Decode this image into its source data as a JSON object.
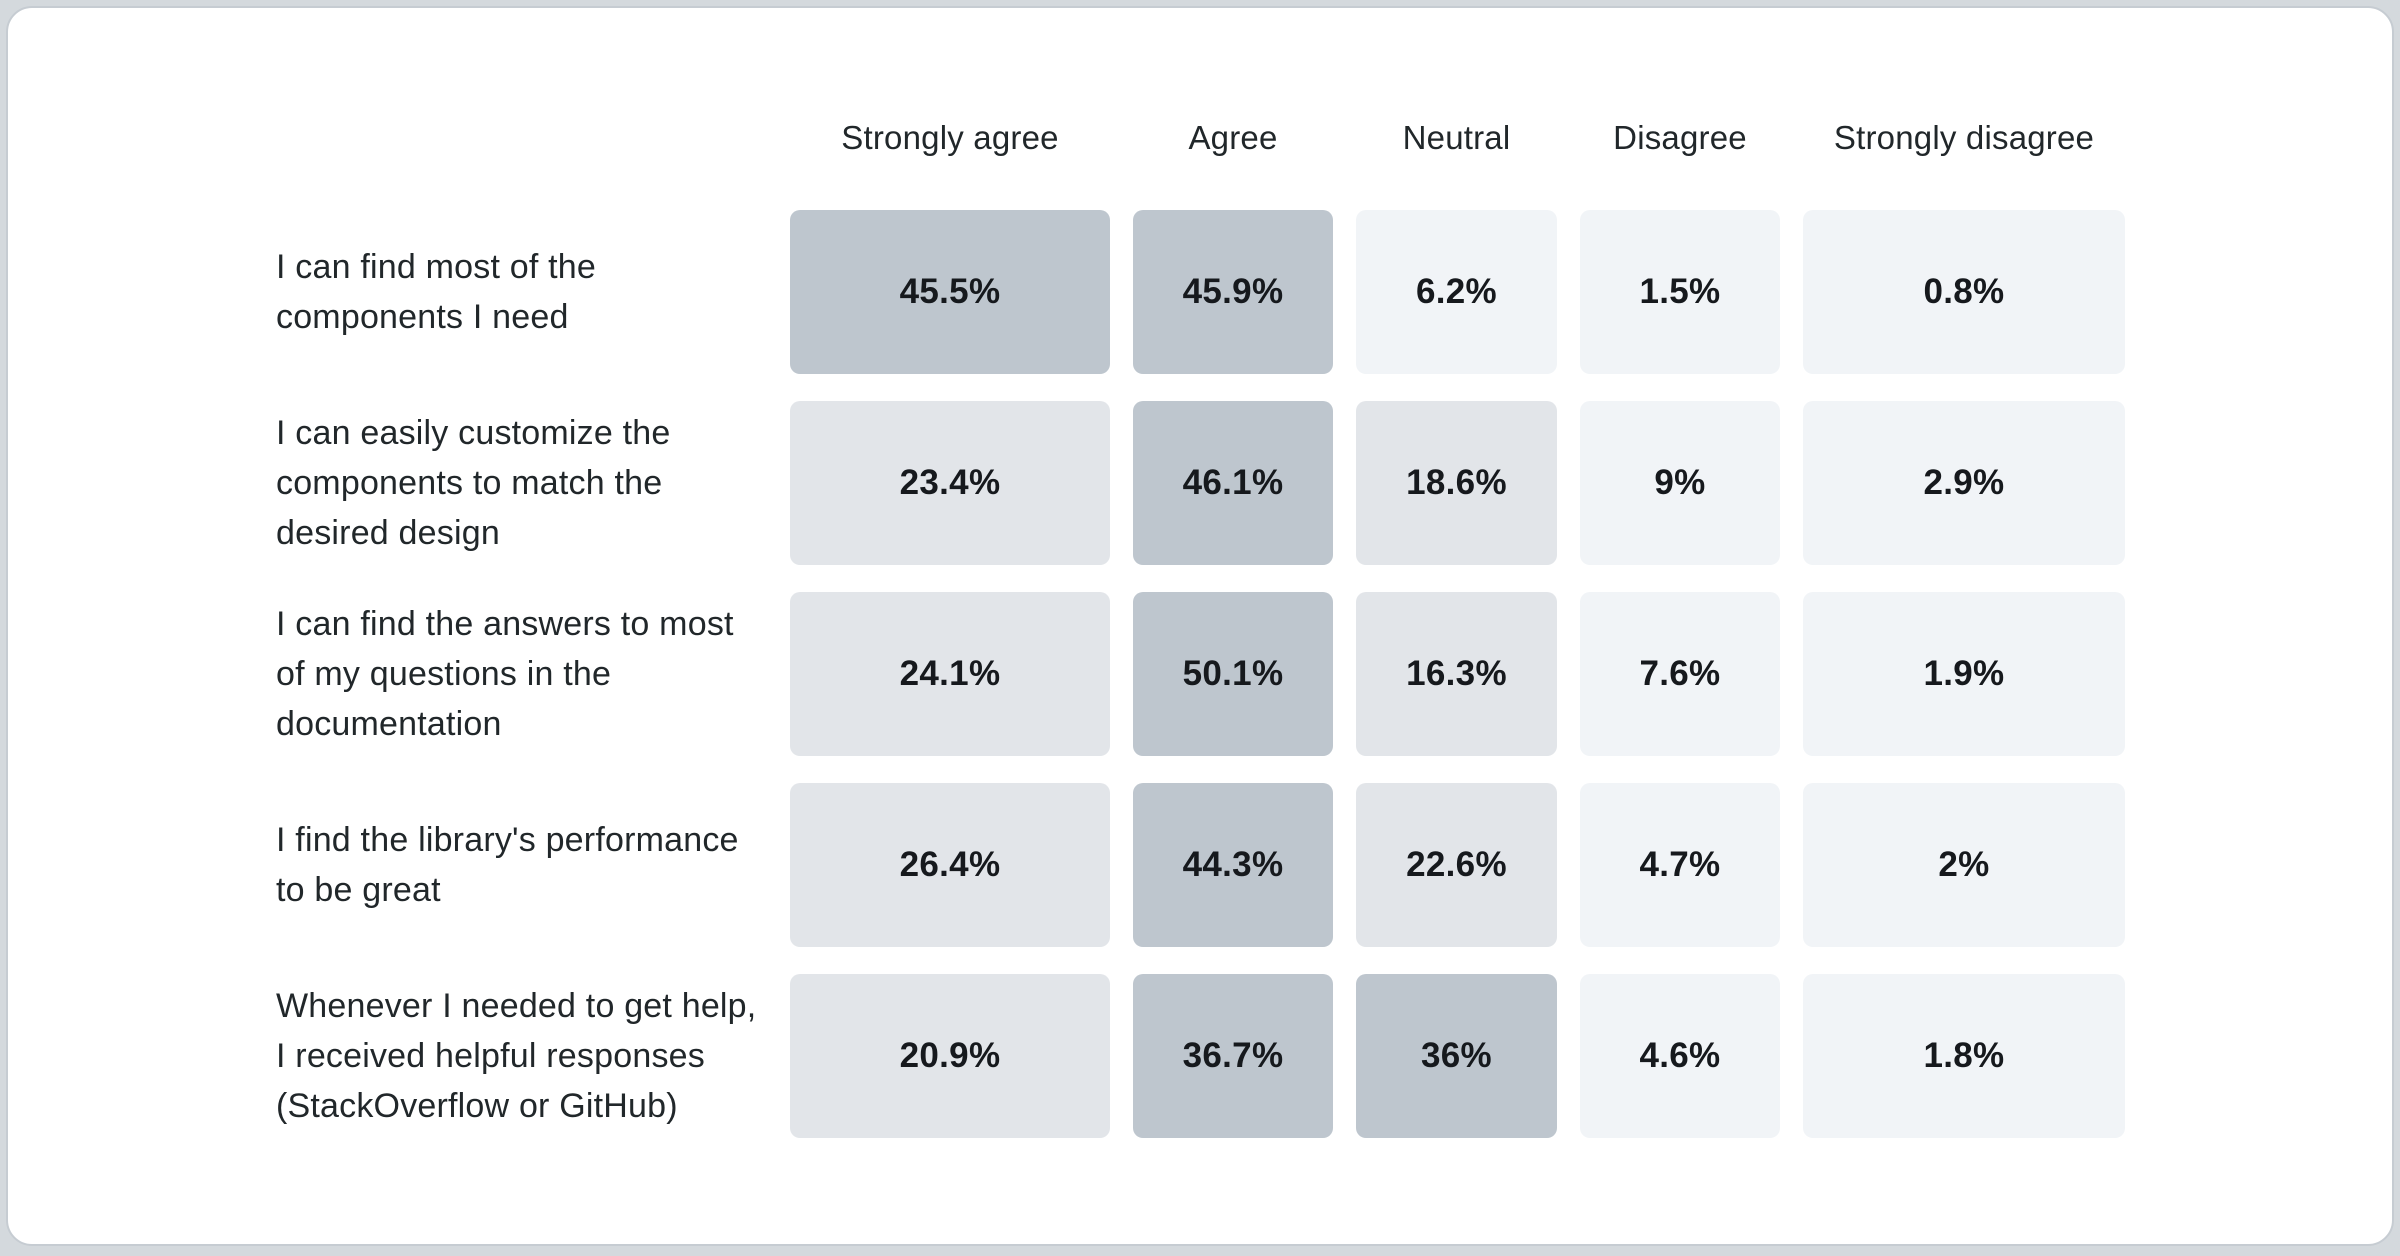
{
  "page": {
    "background": "#d4d9dd",
    "card_background": "#ffffff",
    "card_border": "#c6ccd2"
  },
  "chart_data": {
    "type": "heatmap",
    "title": "",
    "legend_position": "none",
    "columns": [
      "Strongly agree",
      "Agree",
      "Neutral",
      "Disagree",
      "Strongly disagree"
    ],
    "rows": [
      {
        "label": "I can find most of the components I need",
        "label_lines": [
          "I can find most of the",
          "components I need"
        ],
        "values": [
          45.5,
          45.9,
          6.2,
          1.5,
          0.8
        ],
        "values_display": [
          "45.5%",
          "45.9%",
          "6.2%",
          "1.5%",
          "0.8%"
        ]
      },
      {
        "label": "I can easily customize the components to match the desired design",
        "label_lines": [
          "I can easily customize the",
          "components to match the",
          "desired design"
        ],
        "values": [
          23.4,
          46.1,
          18.6,
          9,
          2.9
        ],
        "values_display": [
          "23.4%",
          "46.1%",
          "18.6%",
          "9%",
          "2.9%"
        ]
      },
      {
        "label": "I can find the answers to most of my questions in the documentation",
        "label_lines": [
          "I can find the answers to most",
          "of my questions in the",
          "documentation"
        ],
        "values": [
          24.1,
          50.1,
          16.3,
          7.6,
          1.9
        ],
        "values_display": [
          "24.1%",
          "50.1%",
          "16.3%",
          "7.6%",
          "1.9%"
        ]
      },
      {
        "label": "I find the library's performance to be great",
        "label_lines": [
          "I find the library's performance",
          "to be great"
        ],
        "values": [
          26.4,
          44.3,
          22.6,
          4.7,
          2
        ],
        "values_display": [
          "26.4%",
          "44.3%",
          "22.6%",
          "4.7%",
          "2%"
        ]
      },
      {
        "label": "Whenever I needed to get help, I received helpful responses (StackOverflow or GitHub)",
        "label_lines": [
          "Whenever I needed to get help,",
          "I received helpful responses",
          "(StackOverflow or GitHub)"
        ],
        "values": [
          20.9,
          36.7,
          36,
          4.6,
          1.8
        ],
        "values_display": [
          "20.9%",
          "36.7%",
          "36%",
          "4.6%",
          "1.8%"
        ]
      }
    ],
    "color_scale": {
      "high": "#bec6ce",
      "mid": "#e2e5e9",
      "low": "#f1f4f7",
      "high_min": 30,
      "mid_min": 10
    },
    "header_text_color": "#21272a",
    "label_text_color": "#21272a",
    "value_text_color": "#16191d"
  }
}
